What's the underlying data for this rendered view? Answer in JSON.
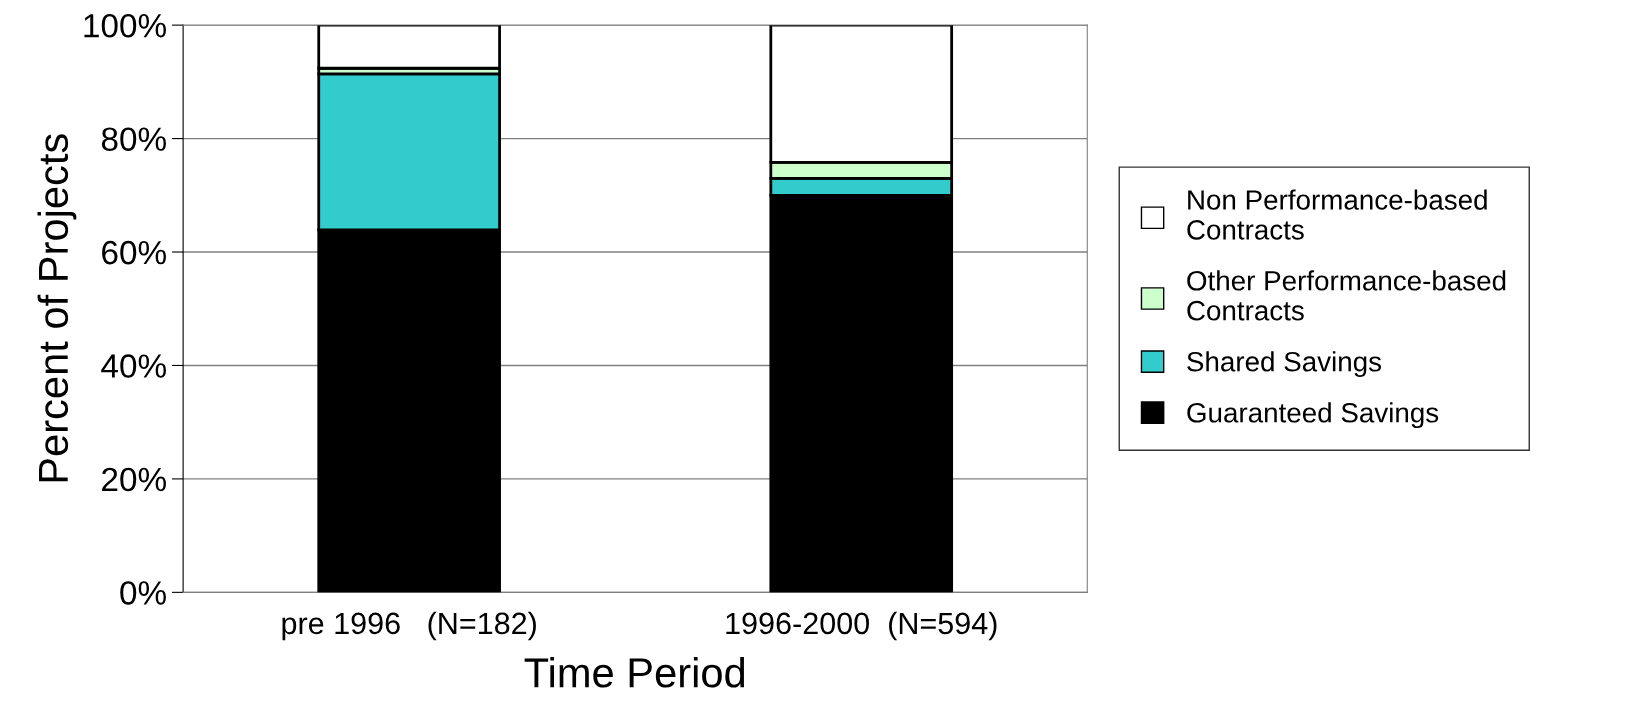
{
  "chart_data": {
    "type": "bar",
    "stacked": true,
    "xlabel": "Time Period",
    "ylabel": "Percent of Projects",
    "categories": [
      "pre 1996   (N=182)",
      "1996-2000  (N=594)"
    ],
    "series": [
      {
        "name": "Guaranteed Savings",
        "color": "#000000",
        "values": [
          63.9,
          70.0
        ]
      },
      {
        "name": "Shared Savings",
        "color": "#33cccc",
        "values": [
          27.5,
          3.0
        ]
      },
      {
        "name": "Other Performance-based\nContracts",
        "color": "#ccffcc",
        "values": [
          1.0,
          2.8
        ]
      },
      {
        "name": "Non Performance-based\nContracts",
        "color": "#ffffff",
        "values": [
          7.6,
          24.2
        ]
      }
    ],
    "ylim": [
      0,
      100
    ],
    "yticks": [
      {
        "value": 0,
        "label": "0%"
      },
      {
        "value": 20,
        "label": "20%"
      },
      {
        "value": 40,
        "label": "40%"
      },
      {
        "value": 60,
        "label": "60%"
      },
      {
        "value": 80,
        "label": "80%"
      },
      {
        "value": 100,
        "label": "100%"
      }
    ],
    "grid": "y",
    "legend": "right"
  }
}
